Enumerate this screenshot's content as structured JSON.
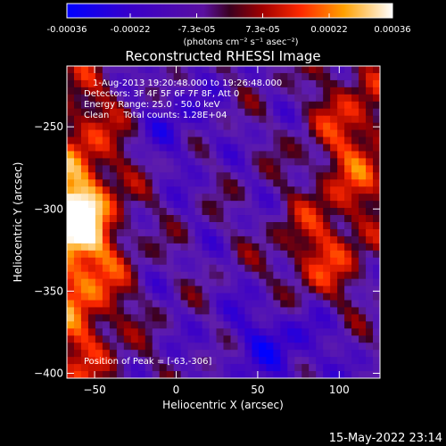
{
  "chart_data": {
    "type": "heatmap",
    "title": "Reconstructed RHESSI Image",
    "xlabel": "Heliocentric X (arcsec)",
    "ylabel": "Heliocentric Y (arcsec)",
    "xlim": [
      -67,
      125
    ],
    "ylim": [
      -403,
      -213
    ],
    "xticks": [
      -50,
      0,
      50,
      100
    ],
    "yticks": [
      -250,
      -300,
      -350,
      -400
    ],
    "colorbar": {
      "ticks": [
        "-0.00036",
        "-0.00022",
        "-7.3e-05",
        "7.3e-05",
        "0.00022",
        "0.00036"
      ],
      "tick_values": [
        -0.00036,
        -0.00022,
        -7.3e-05,
        7.3e-05,
        0.00022,
        0.00036
      ],
      "range": [
        -0.00036,
        0.00036
      ],
      "unit_label": "(photons cm⁻² s⁻¹ asec⁻²)",
      "colormap": "rhessi-blue-purple-red-yellow-white"
    },
    "annotations": [
      "1-Aug-2013 19:20:48.000 to 19:26:48.000",
      "Detectors: 3F 4F 5F 6F 7F 8F, Att 0",
      "Energy Range: 25.0 - 50.0 keV",
      "Clean     Total counts: 1.28E+04"
    ],
    "peak_label": "Position of Peak = [-63,-306]",
    "peak": [
      -63,
      -306
    ],
    "grid": false
  },
  "footer": {
    "timestamp": "15-May-2022 23:14"
  }
}
